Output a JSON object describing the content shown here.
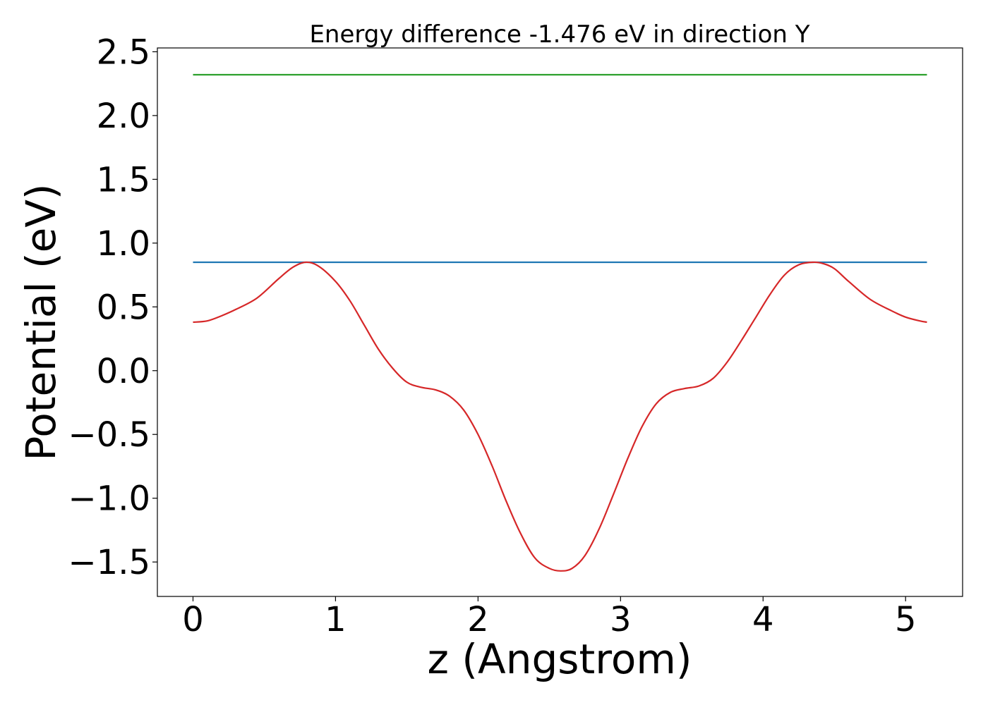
{
  "chart_data": {
    "type": "line",
    "title": "Energy difference -1.476 eV in direction Y",
    "xlabel": "z (Angstrom)",
    "ylabel": "Potential (eV)",
    "xlim": [
      -0.25,
      5.4
    ],
    "ylim": [
      -1.77,
      2.53
    ],
    "xticks": [
      0,
      1,
      2,
      3,
      4,
      5
    ],
    "yticks": [
      2.5,
      2.0,
      1.5,
      1.0,
      0.5,
      0.0,
      -0.5,
      -1.0,
      -1.5
    ],
    "xtick_labels": [
      "0",
      "1",
      "2",
      "3",
      "4",
      "5"
    ],
    "ytick_labels": [
      "2.5",
      "2.0",
      "1.5",
      "1.0",
      "0.5",
      "0.0",
      "−0.5",
      "−1.0",
      "−1.5"
    ],
    "grid": false,
    "series": [
      {
        "color": "#2ca02c",
        "style": "hline",
        "x": [
          0,
          5.15
        ],
        "y": [
          2.32,
          2.32
        ]
      },
      {
        "color": "#1f77b4",
        "style": "hline",
        "x": [
          0,
          5.15
        ],
        "y": [
          0.85,
          0.85
        ]
      },
      {
        "color": "#d62728",
        "style": "curve",
        "x": [
          0.0,
          0.1,
          0.2,
          0.3,
          0.45,
          0.6,
          0.7,
          0.79,
          0.88,
          1.0,
          1.1,
          1.2,
          1.3,
          1.4,
          1.5,
          1.6,
          1.7,
          1.8,
          1.9,
          2.0,
          2.1,
          2.2,
          2.3,
          2.4,
          2.5,
          2.58,
          2.66,
          2.75,
          2.85,
          2.95,
          3.05,
          3.15,
          3.25,
          3.35,
          3.45,
          3.55,
          3.65,
          3.75,
          3.85,
          3.95,
          4.05,
          4.15,
          4.25,
          4.35,
          4.42,
          4.5,
          4.6,
          4.75,
          4.9,
          5.0,
          5.1,
          5.15
        ],
        "y": [
          0.38,
          0.39,
          0.43,
          0.48,
          0.57,
          0.72,
          0.81,
          0.85,
          0.82,
          0.7,
          0.55,
          0.36,
          0.17,
          0.02,
          -0.09,
          -0.13,
          -0.15,
          -0.2,
          -0.31,
          -0.5,
          -0.75,
          -1.03,
          -1.28,
          -1.47,
          -1.55,
          -1.57,
          -1.55,
          -1.45,
          -1.24,
          -0.97,
          -0.69,
          -0.44,
          -0.26,
          -0.17,
          -0.14,
          -0.12,
          -0.06,
          0.07,
          0.24,
          0.42,
          0.6,
          0.75,
          0.83,
          0.85,
          0.84,
          0.8,
          0.7,
          0.56,
          0.47,
          0.42,
          0.39,
          0.38
        ]
      }
    ]
  }
}
